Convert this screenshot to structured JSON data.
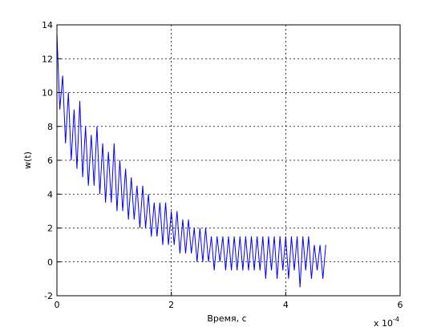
{
  "chart_data": {
    "type": "line",
    "xlabel": "Время, с",
    "ylabel": "w(t)",
    "x_multiplier": "x 10",
    "x_exponent": "-4",
    "x": [
      0,
      0.05,
      0.1,
      0.15,
      0.2,
      0.25,
      0.3,
      0.35,
      0.4,
      0.45,
      0.5,
      0.55,
      0.6,
      0.65,
      0.7,
      0.75,
      0.8,
      0.85,
      0.9,
      0.95,
      1.0,
      1.05,
      1.1,
      1.15,
      1.2,
      1.25,
      1.3,
      1.35,
      1.4,
      1.45,
      1.5,
      1.55,
      1.6,
      1.65,
      1.7,
      1.75,
      1.8,
      1.85,
      1.9,
      1.95,
      2.0,
      2.05,
      2.1,
      2.15,
      2.2,
      2.25,
      2.3,
      2.35,
      2.4,
      2.45,
      2.5,
      2.55,
      2.6,
      2.65,
      2.7,
      2.75,
      2.8,
      2.85,
      2.9,
      2.95,
      3.0,
      3.05,
      3.1,
      3.15,
      3.2,
      3.25,
      3.3,
      3.35,
      3.4,
      3.45,
      3.5,
      3.55,
      3.6,
      3.65,
      3.7,
      3.75,
      3.8,
      3.85,
      3.9,
      3.95,
      4.0,
      4.05,
      4.1,
      4.15,
      4.2,
      4.25,
      4.3,
      4.35,
      4.4,
      4.45,
      4.5,
      4.55,
      4.6,
      4.65,
      4.7
    ],
    "series": [
      {
        "color": "#0000ff",
        "values": [
          13.5,
          9,
          11,
          7,
          10,
          6,
          9,
          5.5,
          9.5,
          5,
          8,
          4.5,
          7.5,
          4.5,
          8,
          4,
          7,
          3.5,
          6.5,
          3.5,
          7,
          3,
          6,
          3,
          5.5,
          2.5,
          5,
          2.5,
          4.5,
          2,
          4.5,
          2,
          4,
          1.5,
          3.5,
          1.5,
          3.5,
          1,
          3.5,
          1,
          3,
          1,
          3,
          0.5,
          2.5,
          0.5,
          2.5,
          0.5,
          2,
          0,
          2,
          0,
          2,
          0,
          1.5,
          -0.5,
          1.5,
          0,
          1.5,
          -0.5,
          1.5,
          -0.5,
          1.5,
          -0.5,
          1.5,
          -0.5,
          1.5,
          -0.5,
          1.5,
          -0.5,
          1.5,
          -0.5,
          1.5,
          -1,
          1.5,
          -0.5,
          1.5,
          -1,
          1.5,
          -0.5,
          1.5,
          -1,
          1.5,
          -0.5,
          1.5,
          -1.5,
          1.5,
          -0.5,
          1.5,
          -1,
          1,
          -0.5,
          1,
          -1,
          1
        ]
      }
    ],
    "xlim": [
      0,
      6
    ],
    "ylim": [
      -2,
      14
    ],
    "xticks": [
      0,
      2,
      4,
      6
    ],
    "yticks": [
      -2,
      0,
      2,
      4,
      6,
      8,
      10,
      12,
      14
    ],
    "grid": true
  }
}
